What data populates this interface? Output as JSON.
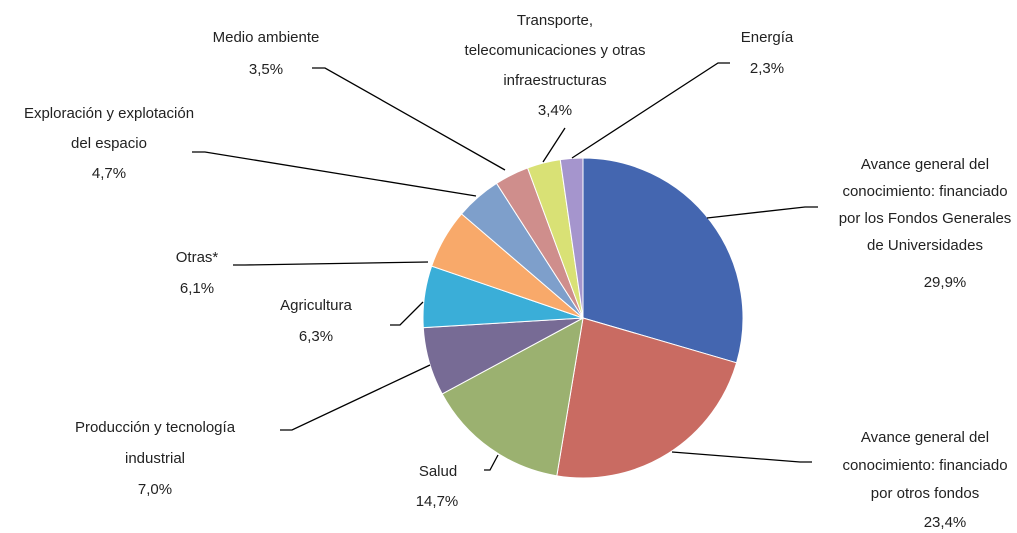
{
  "chart_data": {
    "type": "pie",
    "categories": [
      "Avance general del conocimiento: financiado por los Fondos Generales de Universidades",
      "Avance general del conocimiento: financiado por otros fondos",
      "Salud",
      "Producción y tecnología industrial",
      "Agricultura",
      "Otras*",
      "Exploración y explotación del espacio",
      "Medio ambiente",
      "Transporte, telecomunicaciones y otras infraestructuras",
      "Energía"
    ],
    "values": [
      29.9,
      23.4,
      14.7,
      7.0,
      6.3,
      6.1,
      4.7,
      3.5,
      3.4,
      2.3
    ],
    "value_labels": [
      "29,9%",
      "23,4%",
      "14,7%",
      "7,0%",
      "6,3%",
      "6,1%",
      "4,7%",
      "3,5%",
      "3,4%",
      "2,3%"
    ],
    "colors": [
      "#4466b0",
      "#c96b62",
      "#9bb170",
      "#776b95",
      "#3aaed8",
      "#f8a96a",
      "#7e9fcb",
      "#cf8e8c",
      "#d9e175",
      "#a595cd"
    ]
  }
}
